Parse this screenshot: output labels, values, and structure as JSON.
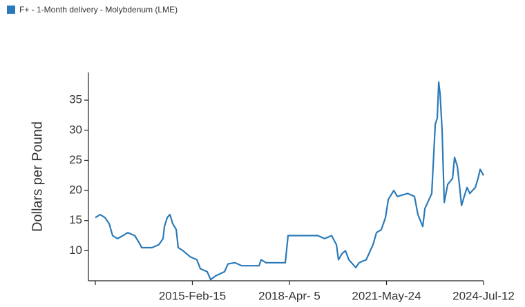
{
  "chart_data": {
    "type": "line",
    "legend": "top-left",
    "y_label": "Dollars per Pound",
    "xlim": [
      "2011-12-28",
      "2024-07-12"
    ],
    "xticks": [
      {
        "value": "2011-12-28"
      },
      {
        "value": "2015-02-15",
        "label": "2015-Feb-15"
      },
      {
        "value": "2018-04-05",
        "label": "2018-Apr- 5"
      },
      {
        "value": "2021-05-24",
        "label": "2021-May-24"
      },
      {
        "value": "2024-07-12",
        "label": "2024-Jul-12"
      }
    ],
    "ylim": [
      5,
      39.6
    ],
    "yticks": [
      10,
      15,
      20,
      25,
      30,
      35
    ],
    "x": [
      "2011-12-28",
      "2012-02-23",
      "2012-04-20",
      "2012-06-08",
      "2012-07-19",
      "2012-09-14",
      "2012-11-18",
      "2013-01-14",
      "2013-04-06",
      "2013-06-10",
      "2013-06-26",
      "2013-10-26",
      "2014-01-16",
      "2014-03-06",
      "2014-03-22",
      "2014-04-24",
      "2014-05-26",
      "2014-06-28",
      "2014-08-08",
      "2014-09-01",
      "2014-10-28",
      "2015-01-18",
      "2015-04-09",
      "2015-05-20",
      "2015-08-09",
      "2015-09-19",
      "2015-11-15",
      "2016-02-29",
      "2016-04-10",
      "2016-06-30",
      "2016-09-20",
      "2017-04-12",
      "2017-05-06",
      "2017-07-02",
      "2018-02-15",
      "2018-03-20",
      "2019-03-05",
      "2019-05-26",
      "2019-08-15",
      "2019-10-11",
      "2019-11-05",
      "2019-12-16",
      "2020-01-25",
      "2020-03-06",
      "2020-05-27",
      "2020-07-06",
      "2020-09-26",
      "2020-12-16",
      "2021-01-26",
      "2021-03-24",
      "2021-05-12",
      "2021-06-14",
      "2021-08-18",
      "2021-09-28",
      "2022-01-28",
      "2022-04-19",
      "2022-05-30",
      "2022-07-26",
      "2022-08-20",
      "2022-11-09",
      "2022-12-20",
      "2023-01-13",
      "2023-01-30",
      "2023-02-15",
      "2023-03-11",
      "2023-04-05",
      "2023-05-16",
      "2023-07-12",
      "2023-08-05",
      "2023-09-07",
      "2023-10-01",
      "2023-10-26",
      "2023-11-27",
      "2023-12-30",
      "2024-02-01",
      "2024-04-06",
      "2024-05-08",
      "2024-06-02",
      "2024-07-12"
    ],
    "series": [
      {
        "name": "F+ - 1-Month delivery - Molybdenum (LME)",
        "color": "#2a7ab9",
        "values": [
          15.5,
          16,
          15.5,
          14.5,
          12.5,
          12,
          12.5,
          13,
          12.5,
          11,
          10.5,
          10.5,
          11,
          12,
          14,
          15.5,
          16,
          14.5,
          13.5,
          10.5,
          10,
          9,
          8.5,
          7,
          6.5,
          5.2,
          5.8,
          6.5,
          7.8,
          8,
          7.5,
          7.5,
          8.5,
          8,
          8,
          12.5,
          12.5,
          12,
          12.5,
          11,
          8.5,
          9.5,
          10,
          8.5,
          7.2,
          8,
          8.5,
          11,
          13,
          13.5,
          15.5,
          18.5,
          20,
          19,
          19.5,
          19,
          16,
          14,
          17,
          19.5,
          31,
          32,
          38,
          36,
          30,
          18,
          21,
          22,
          25.5,
          24,
          21,
          17.5,
          19,
          20.5,
          19.5,
          20.5,
          22,
          23.5,
          22.5
        ]
      }
    ]
  }
}
